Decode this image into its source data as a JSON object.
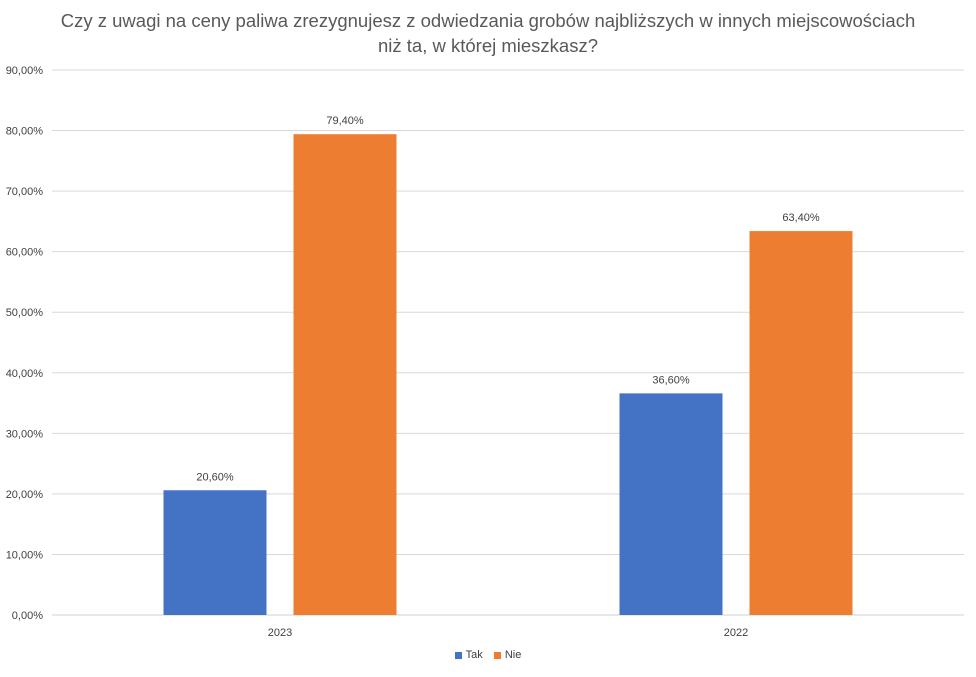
{
  "chart_data": {
    "type": "bar",
    "title_lines": [
      "Czy z uwagi na ceny paliwa zrezygnujesz z odwiedzania grobów najbliższych w innych miejscowościach",
      "niż ta, w której mieszkasz?"
    ],
    "categories": [
      "2023",
      "2022"
    ],
    "series": [
      {
        "name": "Tak",
        "color": "#4472c4",
        "values": [
          20.6,
          36.6
        ],
        "labels": [
          "20,60%",
          "36,60%"
        ]
      },
      {
        "name": "Nie",
        "color": "#ed7d31",
        "values": [
          79.4,
          63.4
        ],
        "labels": [
          "79,40%",
          "63,40%"
        ]
      }
    ],
    "ylim": [
      0,
      90
    ],
    "yticks": [
      {
        "value": 0,
        "label": "0,00%"
      },
      {
        "value": 10,
        "label": "10,00%"
      },
      {
        "value": 20,
        "label": "20,00%"
      },
      {
        "value": 30,
        "label": "30,00%"
      },
      {
        "value": 40,
        "label": "40,00%"
      },
      {
        "value": 50,
        "label": "50,00%"
      },
      {
        "value": 60,
        "label": "60,00%"
      },
      {
        "value": 70,
        "label": "70,00%"
      },
      {
        "value": 80,
        "label": "80,00%"
      },
      {
        "value": 90,
        "label": "90,00%"
      }
    ],
    "grid": true,
    "legend_position": "bottom"
  }
}
